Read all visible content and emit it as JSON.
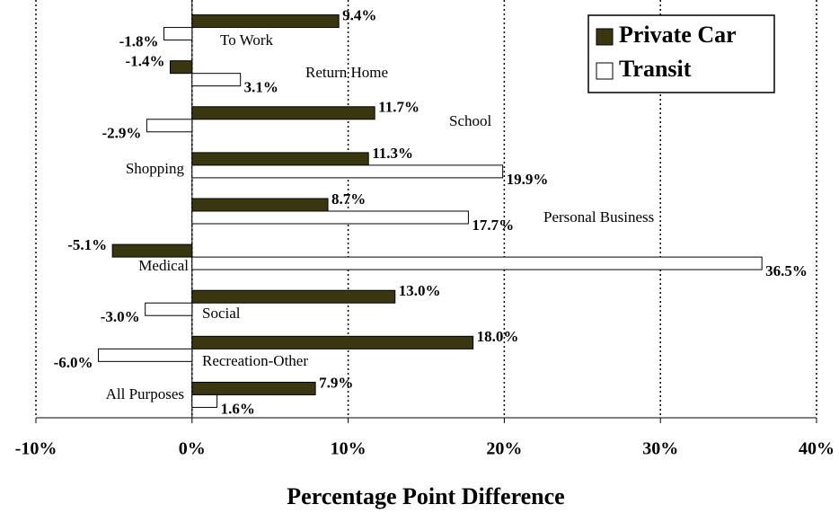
{
  "chart_data": {
    "type": "hbar",
    "categories": [
      "To Work",
      "Return Home",
      "School",
      "Shopping",
      "Personal Business",
      "Medical",
      "Social",
      "Recreation-Other",
      "All Purposes"
    ],
    "series": [
      {
        "name": "Private Car",
        "color": "#38370f",
        "values": [
          9.4,
          -1.4,
          11.7,
          11.3,
          8.7,
          -5.1,
          13.0,
          18.0,
          7.9
        ],
        "value_labels": [
          "9.4%",
          "-1.4%",
          "11.7%",
          "11.3%",
          "8.7%",
          "-5.1%",
          "13.0%",
          "18.0%",
          "7.9%"
        ]
      },
      {
        "name": "Transit",
        "color": "#ffffff",
        "values": [
          -1.8,
          3.1,
          -2.9,
          19.9,
          17.7,
          36.5,
          -3.0,
          -6.0,
          1.6
        ],
        "value_labels": [
          "-1.8%",
          "3.1%",
          "-2.9%",
          "19.9%",
          "17.7%",
          "36.5%",
          "-3.0%",
          "-6.0%",
          "1.6%"
        ]
      }
    ],
    "xlabel": "Percentage Point Difference",
    "xlim": [
      -10,
      40
    ],
    "xticks": [
      {
        "value": -10,
        "label": "-10%"
      },
      {
        "value": 0,
        "label": "0%"
      },
      {
        "value": 10,
        "label": "10%"
      },
      {
        "value": 20,
        "label": "20%"
      },
      {
        "value": 30,
        "label": "30%"
      },
      {
        "value": 40,
        "label": "40%"
      }
    ],
    "grid": true,
    "legend": "upper right"
  }
}
